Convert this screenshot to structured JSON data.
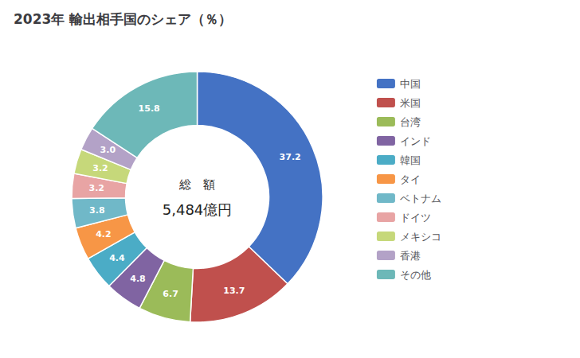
{
  "chart_data": {
    "type": "pie",
    "title": "2023年 輸出相手国のシェア（％）",
    "annotations": [
      "総　額",
      "5,484億円"
    ],
    "categories": [
      "中国",
      "米国",
      "台湾",
      "インド",
      "韓国",
      "タイ",
      "ベトナム",
      "ドイツ",
      "メキシコ",
      "香港",
      "その他"
    ],
    "values": [
      37.2,
      13.7,
      6.7,
      4.8,
      4.4,
      4.2,
      3.8,
      3.2,
      3.2,
      3.0,
      15.8
    ],
    "value_labels": [
      "37.2",
      "13.7",
      "6.7",
      "4.8",
      "4.4",
      "4.2",
      "3.8",
      "3.2",
      "3.2",
      "3.0",
      "15.8"
    ],
    "data_labels": true,
    "colors": [
      "#4472C4",
      "#C0504D",
      "#9BBB59",
      "#8064A2",
      "#4BACC6",
      "#F79646",
      "#70B8C8",
      "#E8A4A4",
      "#C6D87A",
      "#B3A2C7",
      "#6DB8B8"
    ],
    "legend": "right"
  }
}
